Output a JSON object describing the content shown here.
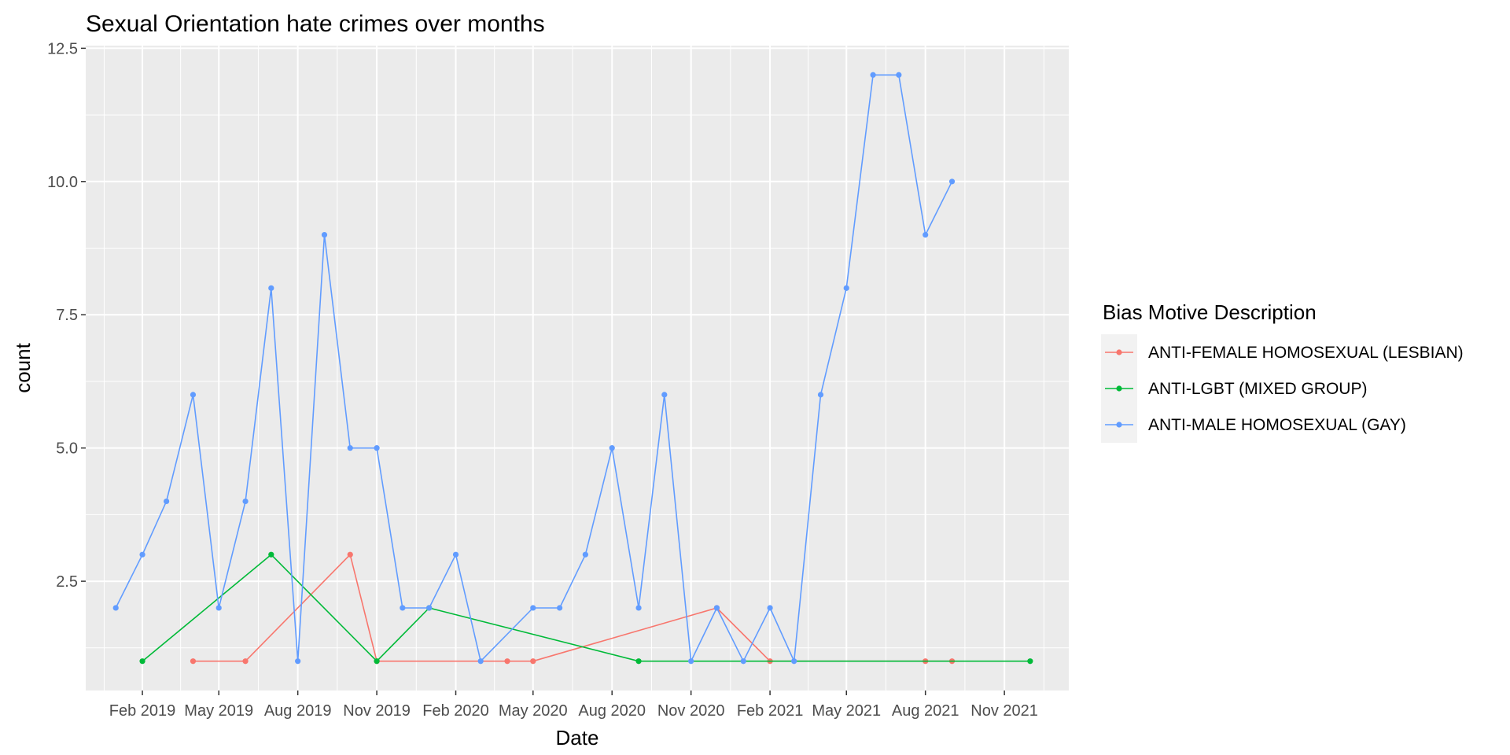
{
  "chart_data": {
    "type": "line",
    "title": "Sexual Orientation hate crimes over months",
    "xlabel": "Date",
    "ylabel": "count",
    "x_axis_type": "date",
    "x_ticks": [
      "2019-02-01",
      "2019-05-01",
      "2019-08-01",
      "2019-11-01",
      "2020-02-01",
      "2020-05-01",
      "2020-08-01",
      "2020-11-01",
      "2021-02-01",
      "2021-05-01",
      "2021-08-01",
      "2021-11-01"
    ],
    "x_tick_labels": [
      "Feb 2019",
      "May 2019",
      "Aug 2019",
      "Nov 2019",
      "Feb 2020",
      "May 2020",
      "Aug 2020",
      "Nov 2020",
      "Feb 2021",
      "May 2021",
      "Aug 2021",
      "Nov 2021"
    ],
    "xlim": [
      "2018-11-27",
      "2022-01-15"
    ],
    "y_ticks": [
      2.5,
      5.0,
      7.5,
      10.0,
      12.5
    ],
    "y_tick_labels": [
      "2.5",
      "5.0",
      "7.5",
      "10.0",
      "12.5"
    ],
    "ylim": [
      0.45,
      12.55
    ],
    "grid": true,
    "legend": {
      "title": "Bias Motive Description",
      "position": "right"
    },
    "series": [
      {
        "name": "ANTI-FEMALE HOMOSEXUAL (LESBIAN)",
        "color": "#F8766D",
        "points": [
          [
            "2019-04-01",
            1
          ],
          [
            "2019-06-01",
            1
          ],
          [
            "2019-10-01",
            3
          ],
          [
            "2019-11-01",
            1
          ],
          [
            "2020-04-01",
            1
          ],
          [
            "2020-05-01",
            1
          ],
          [
            "2020-12-01",
            2
          ],
          [
            "2021-02-01",
            1
          ],
          [
            "2021-08-01",
            1
          ],
          [
            "2021-09-01",
            1
          ]
        ]
      },
      {
        "name": "ANTI-LGBT (MIXED GROUP)",
        "color": "#00BA38",
        "points": [
          [
            "2019-02-01",
            1
          ],
          [
            "2019-07-01",
            3
          ],
          [
            "2019-11-01",
            1
          ],
          [
            "2020-01-01",
            2
          ],
          [
            "2020-09-01",
            1
          ],
          [
            "2021-12-01",
            1
          ]
        ]
      },
      {
        "name": "ANTI-MALE HOMOSEXUAL (GAY)",
        "color": "#619CFF",
        "points": [
          [
            "2019-01-01",
            2
          ],
          [
            "2019-02-01",
            3
          ],
          [
            "2019-03-01",
            4
          ],
          [
            "2019-04-01",
            6
          ],
          [
            "2019-05-01",
            2
          ],
          [
            "2019-06-01",
            4
          ],
          [
            "2019-07-01",
            8
          ],
          [
            "2019-08-01",
            1
          ],
          [
            "2019-09-01",
            9
          ],
          [
            "2019-10-01",
            5
          ],
          [
            "2019-11-01",
            5
          ],
          [
            "2019-12-01",
            2
          ],
          [
            "2020-01-01",
            2
          ],
          [
            "2020-02-01",
            3
          ],
          [
            "2020-03-01",
            1
          ],
          [
            "2020-05-01",
            2
          ],
          [
            "2020-06-01",
            2
          ],
          [
            "2020-07-01",
            3
          ],
          [
            "2020-08-01",
            5
          ],
          [
            "2020-09-01",
            2
          ],
          [
            "2020-10-01",
            6
          ],
          [
            "2020-11-01",
            1
          ],
          [
            "2020-12-01",
            2
          ],
          [
            "2021-01-01",
            1
          ],
          [
            "2021-02-01",
            2
          ],
          [
            "2021-03-01",
            1
          ],
          [
            "2021-04-01",
            6
          ],
          [
            "2021-05-01",
            8
          ],
          [
            "2021-06-01",
            12
          ],
          [
            "2021-07-01",
            12
          ],
          [
            "2021-08-01",
            9
          ],
          [
            "2021-09-01",
            10
          ]
        ]
      }
    ]
  }
}
